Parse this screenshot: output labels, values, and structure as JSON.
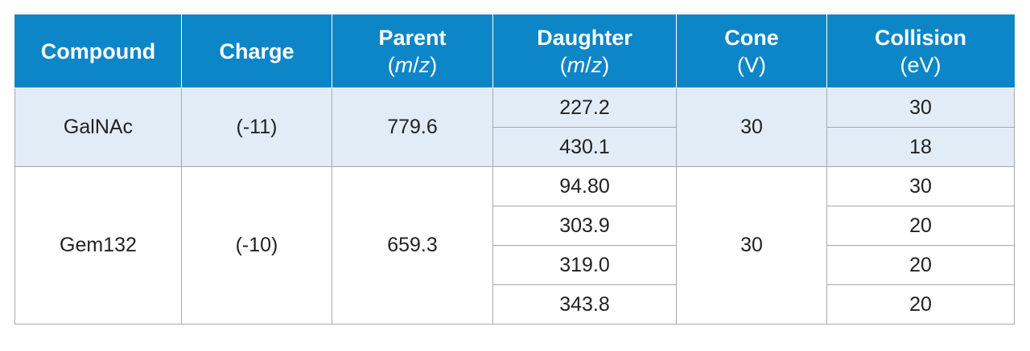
{
  "table": {
    "headers": {
      "compound": "Compound",
      "charge": "Charge",
      "parent": "Parent",
      "daughter": "Daughter",
      "mz": "(m/z)",
      "cone": "Cone",
      "cone_unit": "(V)",
      "collision": "Collision",
      "collision_unit": "(eV)"
    },
    "rows": [
      {
        "compound": "GalNAc",
        "charge": "(-11)",
        "parent": "779.6",
        "cone": "30",
        "transitions": [
          {
            "daughter": "227.2",
            "collision": "30"
          },
          {
            "daughter": "430.1",
            "collision": "18"
          }
        ]
      },
      {
        "compound": "Gem132",
        "charge": "(-10)",
        "parent": "659.3",
        "cone": "30",
        "transitions": [
          {
            "daughter": "94.80",
            "collision": "30"
          },
          {
            "daughter": "303.9",
            "collision": "20"
          },
          {
            "daughter": "319.0",
            "collision": "20"
          },
          {
            "daughter": "343.8",
            "collision": "20"
          }
        ]
      }
    ]
  },
  "colors": {
    "header_bg": "#0d86c8",
    "header_text": "#ffffff",
    "row_band": "#e1ecf7",
    "border": "#a7a9ac"
  }
}
